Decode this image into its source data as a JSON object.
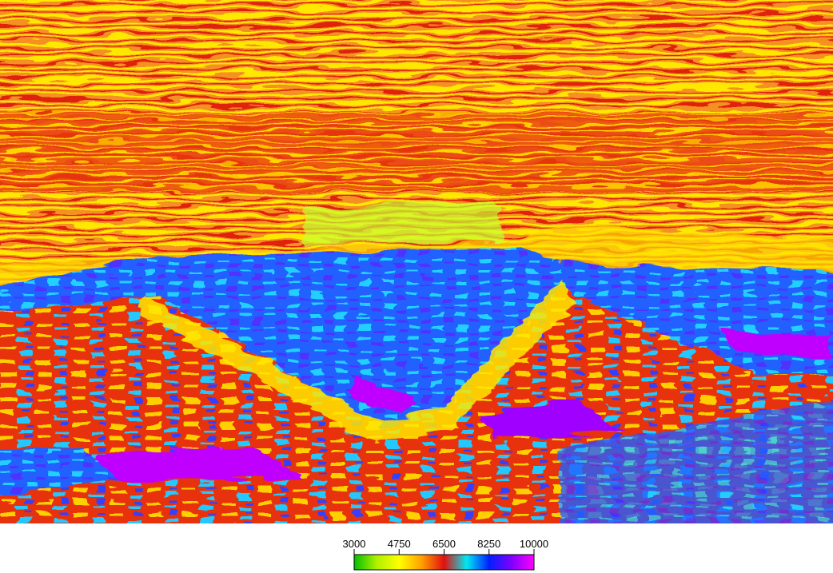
{
  "chart_data": {
    "type": "colorbar",
    "xlim": [
      3000,
      10000
    ],
    "xticks": [
      3000,
      4750,
      6500,
      8250,
      10000
    ],
    "colormap": [
      "#00c000",
      "#b0f000",
      "#ffff00",
      "#ffa000",
      "#e01010",
      "#00e8f0",
      "#0020ff",
      "#8000ff",
      "#ff00ff"
    ]
  }
}
